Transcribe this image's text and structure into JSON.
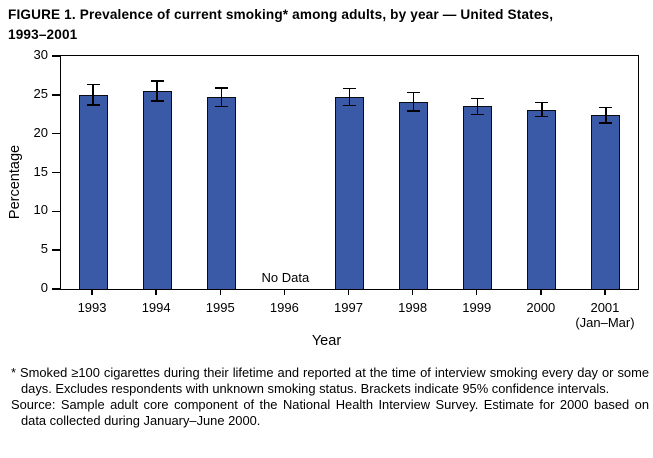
{
  "figure": {
    "title_line1": "FIGURE 1. Prevalence of current smoking* among adults, by year — United States,",
    "title_line2": "1993–2001"
  },
  "chart_data": {
    "type": "bar",
    "title": "FIGURE 1. Prevalence of current smoking* among adults, by year — United States, 1993–2001",
    "xlabel": "Year",
    "ylabel": "Percentage",
    "ylim": [
      0,
      30
    ],
    "yticks": [
      0,
      5,
      10,
      15,
      20,
      25,
      30
    ],
    "grid": false,
    "legend": null,
    "categories": [
      "1993",
      "1994",
      "1995",
      "1996",
      "1997",
      "1998",
      "1999",
      "2000",
      "2001"
    ],
    "x_sublabels": {
      "2001": "(Jan–Mar)"
    },
    "values": [
      25.0,
      25.5,
      24.7,
      null,
      24.7,
      24.1,
      23.5,
      23.1,
      22.4
    ],
    "ci_half_widths": [
      1.3,
      1.3,
      1.2,
      null,
      1.1,
      1.2,
      1.0,
      0.9,
      1.0
    ],
    "no_data_label": "No Data",
    "bar_color": "#3A59A7",
    "bar_border_color": "#0b0b14",
    "axis_color": "#000000"
  },
  "footnotes": {
    "asterisk_note": "* Smoked ≥100 cigarettes during their lifetime and reported at the time of interview smoking every day or some days. Excludes respondents with unknown smoking status. Brackets indicate 95% confidence intervals.",
    "source_note": "Source: Sample adult core component of the National Health Interview Survey. Estimate for 2000 based on data collected during January–June 2000."
  }
}
